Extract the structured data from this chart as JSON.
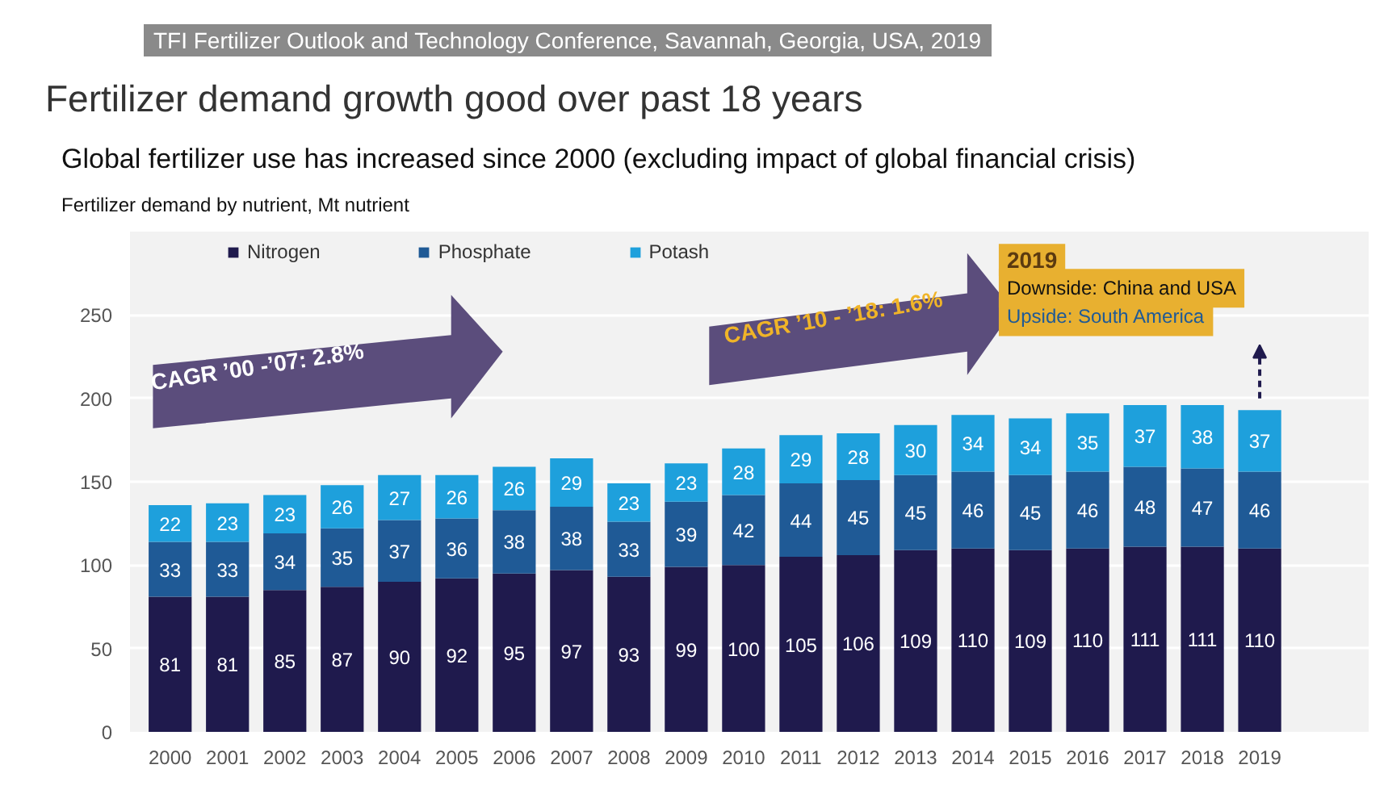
{
  "chart_data": {
    "type": "bar",
    "stacked": true,
    "title": "Global fertilizer use has increased since 2000 (excluding impact of global financial crisis)",
    "subtitle": "Fertilizer demand by nutrient, Mt nutrient",
    "annotations": [
      "TFI Fertilizer Outlook and Technology Conference, Savannah, Georgia, USA, 2019",
      "Fertilizer demand growth good over past 18 years",
      "CAGR ’00 -’07: 2.8%",
      "CAGR ’10 - ’18: 1.6%",
      "2019",
      "Downside: China and USA",
      "Upside: South America"
    ],
    "categories": [
      "2000",
      "2001",
      "2002",
      "2003",
      "2004",
      "2005",
      "2006",
      "2007",
      "2008",
      "2009",
      "2010",
      "2011",
      "2012",
      "2013",
      "2014",
      "2015",
      "2016",
      "2017",
      "2018",
      "2019"
    ],
    "series": [
      {
        "name": "Nitrogen",
        "color": "#1f1a4d",
        "values": [
          81,
          81,
          85,
          87,
          90,
          92,
          95,
          97,
          93,
          99,
          100,
          105,
          106,
          109,
          110,
          109,
          110,
          111,
          111,
          110
        ]
      },
      {
        "name": "Phosphate",
        "color": "#1f5a96",
        "values": [
          33,
          33,
          34,
          35,
          37,
          36,
          38,
          38,
          33,
          39,
          42,
          44,
          45,
          45,
          46,
          45,
          46,
          48,
          47,
          46
        ]
      },
      {
        "name": "Potash",
        "color": "#1ea0dc",
        "values": [
          22,
          23,
          23,
          26,
          27,
          26,
          26,
          29,
          23,
          23,
          28,
          29,
          28,
          30,
          34,
          34,
          35,
          37,
          38,
          37
        ]
      }
    ],
    "ylim": [
      0,
      300
    ],
    "yticks": [
      0,
      50,
      100,
      150,
      200,
      250
    ],
    "grid": "y",
    "legend": "top",
    "data_labels": true
  }
}
